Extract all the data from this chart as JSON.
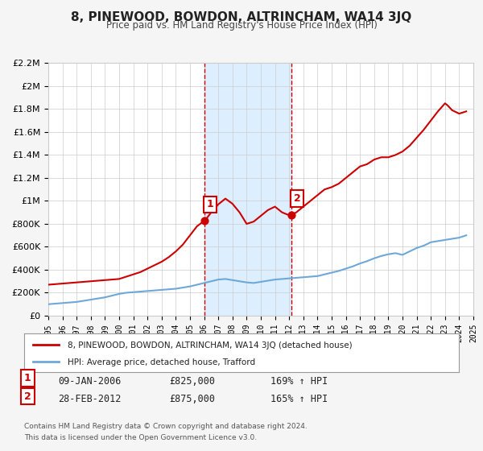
{
  "title": "8, PINEWOOD, BOWDON, ALTRINCHAM, WA14 3JQ",
  "subtitle": "Price paid vs. HM Land Registry's House Price Index (HPI)",
  "hpi_label": "HPI: Average price, detached house, Trafford",
  "property_label": "8, PINEWOOD, BOWDON, ALTRINCHAM, WA14 3JQ (detached house)",
  "transaction1": {
    "label": "1",
    "date": "09-JAN-2006",
    "price": 825000,
    "hpi_pct": "169%",
    "year": 2006.03
  },
  "transaction2": {
    "label": "2",
    "date": "28-FEB-2012",
    "price": 875000,
    "hpi_pct": "165%",
    "year": 2012.16
  },
  "hpi_color": "#6ea8d8",
  "property_color": "#cc0000",
  "background_color": "#f5f5f5",
  "plot_bg_color": "#ffffff",
  "highlight_bg_color": "#ddeeff",
  "ylim": [
    0,
    2200000
  ],
  "xlim": [
    1995,
    2025
  ],
  "yticks": [
    0,
    200000,
    400000,
    600000,
    800000,
    1000000,
    1200000,
    1400000,
    1600000,
    1800000,
    2000000,
    2200000
  ],
  "ytick_labels": [
    "£0",
    "£200K",
    "£400K",
    "£600K",
    "£800K",
    "£1M",
    "£1.2M",
    "£1.4M",
    "£1.6M",
    "£1.8M",
    "£2M",
    "£2.2M"
  ],
  "xticks": [
    1995,
    1996,
    1997,
    1998,
    1999,
    2000,
    2001,
    2002,
    2003,
    2004,
    2005,
    2006,
    2007,
    2008,
    2009,
    2010,
    2011,
    2012,
    2013,
    2014,
    2015,
    2016,
    2017,
    2018,
    2019,
    2020,
    2021,
    2022,
    2023,
    2024,
    2025
  ],
  "hpi_x": [
    1995,
    1995.5,
    1996,
    1996.5,
    1997,
    1997.5,
    1998,
    1998.5,
    1999,
    1999.5,
    2000,
    2000.5,
    2001,
    2001.5,
    2002,
    2002.5,
    2003,
    2003.5,
    2004,
    2004.5,
    2005,
    2005.5,
    2006,
    2006.5,
    2007,
    2007.5,
    2008,
    2008.5,
    2009,
    2009.5,
    2010,
    2010.5,
    2011,
    2011.5,
    2012,
    2012.5,
    2013,
    2013.5,
    2014,
    2014.5,
    2015,
    2015.5,
    2016,
    2016.5,
    2017,
    2017.5,
    2018,
    2018.5,
    2019,
    2019.5,
    2020,
    2020.5,
    2021,
    2021.5,
    2022,
    2022.5,
    2023,
    2023.5,
    2024,
    2024.5
  ],
  "hpi_y": [
    100000,
    105000,
    110000,
    115000,
    120000,
    130000,
    140000,
    150000,
    160000,
    175000,
    190000,
    200000,
    205000,
    210000,
    215000,
    220000,
    225000,
    230000,
    235000,
    245000,
    255000,
    270000,
    285000,
    300000,
    315000,
    320000,
    310000,
    300000,
    290000,
    285000,
    295000,
    305000,
    315000,
    320000,
    325000,
    330000,
    335000,
    340000,
    345000,
    360000,
    375000,
    390000,
    410000,
    430000,
    455000,
    475000,
    500000,
    520000,
    535000,
    545000,
    530000,
    560000,
    590000,
    610000,
    640000,
    650000,
    660000,
    670000,
    680000,
    700000
  ],
  "prop_x": [
    1995,
    1995.5,
    1996,
    1996.5,
    1997,
    1997.5,
    1998,
    1998.5,
    1999,
    1999.5,
    2000,
    2000.5,
    2001,
    2001.5,
    2002,
    2002.5,
    2003,
    2003.5,
    2004,
    2004.5,
    2005,
    2005.5,
    2006,
    2006.03,
    2006.5,
    2007,
    2007.5,
    2008,
    2008.5,
    2009,
    2009.5,
    2010,
    2010.5,
    2011,
    2011.5,
    2012,
    2012.16,
    2012.5,
    2013,
    2013.5,
    2014,
    2014.5,
    2015,
    2015.5,
    2016,
    2016.5,
    2017,
    2017.5,
    2018,
    2018.5,
    2019,
    2019.5,
    2020,
    2020.5,
    2021,
    2021.5,
    2022,
    2022.5,
    2023,
    2023.2,
    2023.5,
    2024,
    2024.5
  ],
  "prop_y": [
    270000,
    275000,
    280000,
    285000,
    290000,
    295000,
    300000,
    305000,
    310000,
    315000,
    320000,
    340000,
    360000,
    380000,
    410000,
    440000,
    470000,
    510000,
    560000,
    620000,
    700000,
    780000,
    825000,
    825000,
    900000,
    970000,
    1020000,
    975000,
    900000,
    800000,
    820000,
    870000,
    920000,
    950000,
    900000,
    875000,
    875000,
    900000,
    950000,
    1000000,
    1050000,
    1100000,
    1120000,
    1150000,
    1200000,
    1250000,
    1300000,
    1320000,
    1360000,
    1380000,
    1380000,
    1400000,
    1430000,
    1480000,
    1550000,
    1620000,
    1700000,
    1780000,
    1850000,
    1830000,
    1790000,
    1760000,
    1780000
  ],
  "footnote1": "Contains HM Land Registry data © Crown copyright and database right 2024.",
  "footnote2": "This data is licensed under the Open Government Licence v3.0."
}
